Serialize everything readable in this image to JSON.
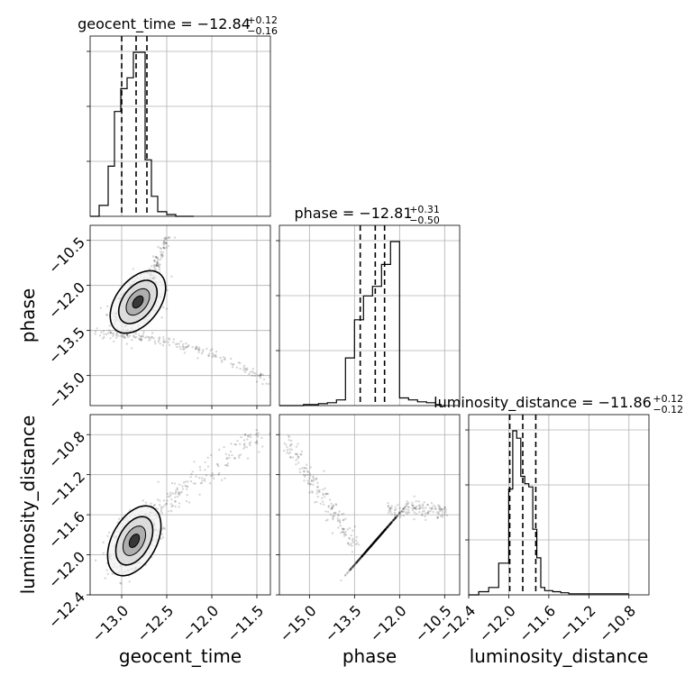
{
  "chart_data": {
    "type": "corner",
    "parameters": [
      "geocent_time",
      "phase",
      "luminosity_distance"
    ],
    "axes": {
      "geocent_time": {
        "label": "geocent_time",
        "lim": [
          -13.35,
          -11.35
        ],
        "ticks": [
          -13.0,
          -12.5,
          -12.0,
          -11.5
        ],
        "tick_labels": [
          "−13.0",
          "−12.5",
          "−12.0",
          "−11.5"
        ]
      },
      "phase": {
        "label": "phase",
        "lim": [
          -16.0,
          -10.0
        ],
        "ticks": [
          -15.0,
          -13.5,
          -12.0,
          -10.5
        ],
        "tick_labels": [
          "−15.0",
          "−13.5",
          "−12.0",
          "−10.5"
        ]
      },
      "luminosity_distance": {
        "label": "luminosity_distance",
        "lim": [
          -12.4,
          -10.6
        ],
        "ticks": [
          -12.4,
          -12.0,
          -11.6,
          -11.2,
          -10.8
        ],
        "tick_labels": [
          "−12.4",
          "−12.0",
          "−11.6",
          "−11.2",
          "−10.8"
        ]
      }
    },
    "titles": [
      {
        "param": "geocent_time",
        "text": "geocent_time = −12.84",
        "sup": "+0.12",
        "sub": "−0.16"
      },
      {
        "param": "phase",
        "text": "phase = −12.81",
        "sup": "+0.31",
        "sub": "−0.50"
      },
      {
        "param": "luminosity_distance",
        "text": "luminosity_distance = −11.86",
        "sup": "+0.12",
        "sub": "−0.12"
      }
    ],
    "histograms": [
      {
        "param": "geocent_time",
        "edges": [
          -13.35,
          -13.25,
          -13.15,
          -13.08,
          -13.01,
          -12.94,
          -12.87,
          -12.81,
          -12.74,
          -12.67,
          -12.6,
          -12.5,
          -12.4,
          -12.3,
          -12.2
        ],
        "counts": [
          0,
          12,
          55,
          115,
          140,
          152,
          180,
          180,
          62,
          22,
          5,
          2,
          0,
          0
        ],
        "quantiles": [
          -13.0,
          -12.84,
          -12.72
        ]
      },
      {
        "param": "phase",
        "edges": [
          -16.0,
          -15.2,
          -14.7,
          -14.4,
          -14.1,
          -13.8,
          -13.5,
          -13.2,
          -12.9,
          -12.6,
          -12.3,
          -12.0,
          -11.7,
          -11.4,
          -11.1,
          -10.8,
          -10.6
        ],
        "counts": [
          0,
          1,
          2,
          3,
          6,
          50,
          90,
          115,
          125,
          148,
          172,
          8,
          6,
          4,
          3,
          1
        ],
        "quantiles": [
          -13.31,
          -12.81,
          -12.5
        ]
      },
      {
        "param": "luminosity_distance",
        "edges": [
          -12.4,
          -12.3,
          -12.2,
          -12.1,
          -12.0,
          -11.96,
          -11.92,
          -11.88,
          -11.84,
          -11.8,
          -11.76,
          -11.72,
          -11.68,
          -11.64,
          -11.56,
          -11.48,
          -11.4,
          -11.3,
          -11.1,
          -10.8
        ],
        "counts": [
          0,
          3,
          7,
          30,
          100,
          155,
          148,
          112,
          105,
          102,
          62,
          35,
          7,
          4,
          3,
          2,
          1,
          1,
          1
        ],
        "quantiles": [
          -11.99,
          -11.86,
          -11.73
        ]
      }
    ],
    "joint": [
      {
        "x": "geocent_time",
        "y": "phase",
        "peak": [
          -12.82,
          -12.55
        ],
        "cov": [
          [
            0.014,
            0.021
          ],
          [
            0.021,
            0.16
          ]
        ]
      },
      {
        "x": "geocent_time",
        "y": "luminosity_distance",
        "peak": [
          -12.86,
          -11.86
        ],
        "cov": [
          [
            0.013,
            0.0065
          ],
          [
            0.0065,
            0.018
          ]
        ]
      },
      {
        "x": "phase",
        "y": "luminosity_distance",
        "peak": [
          -12.83,
          -11.87
        ],
        "cov": [
          [
            0.16,
            0.055
          ],
          [
            0.055,
            0.016
          ]
        ]
      }
    ]
  }
}
